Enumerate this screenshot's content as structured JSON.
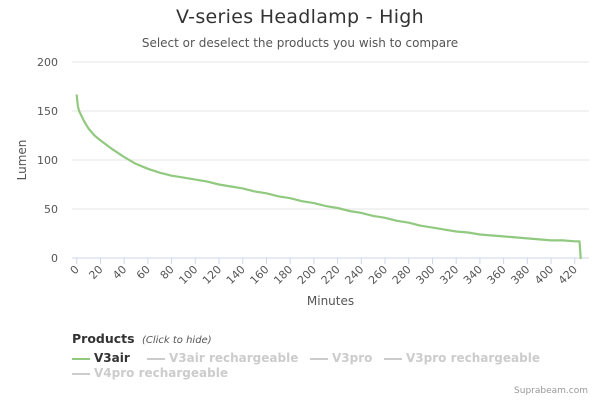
{
  "chart_data": {
    "type": "line",
    "title": "V-series Headlamp - High",
    "subtitle": "Select or deselect the products you wish to compare",
    "xlabel": "Minutes",
    "ylabel": "Lumen",
    "xlim": [
      -4,
      432
    ],
    "ylim": [
      0,
      200
    ],
    "x_ticks": [
      0,
      20,
      40,
      60,
      80,
      100,
      120,
      140,
      160,
      180,
      200,
      220,
      240,
      260,
      280,
      300,
      320,
      340,
      360,
      380,
      400,
      420
    ],
    "y_ticks": [
      0,
      50,
      100,
      150,
      200
    ],
    "grid": "horizontal",
    "legend": {
      "title": "Products",
      "hint": "(Click to hide)",
      "placement": "bottom-left"
    },
    "series": [
      {
        "name": "V3air",
        "visible": true,
        "color": "#90c97f",
        "x": [
          0,
          1,
          2,
          4,
          6,
          8,
          10,
          15,
          20,
          30,
          40,
          50,
          60,
          70,
          80,
          90,
          100,
          110,
          120,
          130,
          140,
          150,
          160,
          170,
          180,
          190,
          200,
          210,
          220,
          230,
          240,
          250,
          260,
          270,
          280,
          290,
          300,
          310,
          320,
          330,
          340,
          350,
          360,
          370,
          380,
          390,
          400,
          410,
          420,
          424,
          425
        ],
        "y": [
          166,
          155,
          150,
          145,
          140,
          136,
          132,
          125,
          120,
          111,
          103,
          96,
          91,
          87,
          84,
          82,
          80,
          78,
          75,
          73,
          71,
          68,
          66,
          63,
          61,
          58,
          56,
          53,
          51,
          48,
          46,
          43,
          41,
          38,
          36,
          33,
          31,
          29,
          27,
          26,
          24,
          23,
          22,
          21,
          20,
          19,
          18,
          18,
          17,
          17,
          0
        ]
      },
      {
        "name": "V3air rechargeable",
        "visible": false,
        "color": "#cccccc"
      },
      {
        "name": "V3pro",
        "visible": false,
        "color": "#cccccc"
      },
      {
        "name": "V3pro rechargeable",
        "visible": false,
        "color": "#cccccc"
      },
      {
        "name": "V4pro rechargeable",
        "visible": false,
        "color": "#cccccc"
      }
    ]
  },
  "credits": "Suprabeam.com",
  "colors": {
    "visible_text": "#333333",
    "hidden_text": "#cccccc",
    "grid": "#e6e6e6",
    "axis": "#ccd6eb"
  }
}
